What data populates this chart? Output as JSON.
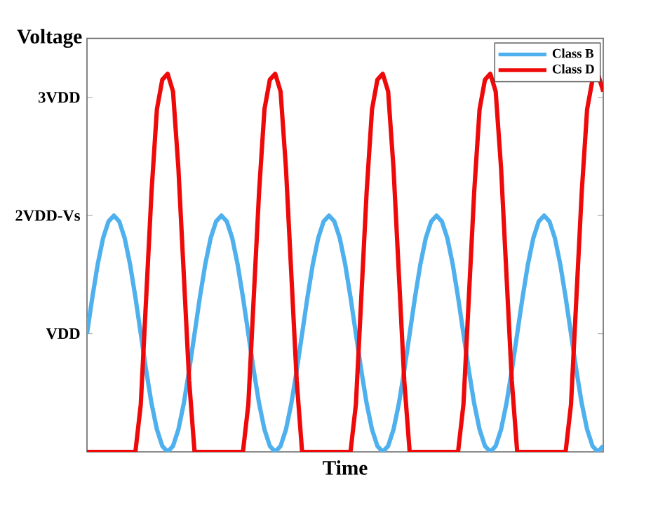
{
  "chart_data": {
    "type": "line",
    "xlabel": "Time",
    "ylabel": "Voltage",
    "categories": [
      null,
      null,
      null,
      null,
      null,
      null,
      null,
      null,
      null,
      null,
      null,
      null,
      null,
      null,
      null,
      null,
      null,
      null,
      null,
      null,
      null,
      null,
      null,
      null,
      null,
      null,
      null,
      null,
      null,
      null,
      null,
      null,
      null,
      null,
      null,
      null,
      null,
      null,
      null,
      null,
      null,
      null,
      null,
      null,
      null,
      null,
      null,
      null,
      null,
      null,
      null,
      null,
      null,
      null,
      null,
      null,
      null,
      null,
      null,
      null,
      null,
      null,
      null,
      null,
      null,
      null,
      null,
      null,
      null,
      null,
      null,
      null,
      null,
      null,
      null,
      null,
      null,
      null,
      null,
      null,
      null,
      null,
      null,
      null,
      null,
      null,
      null,
      null,
      null,
      null,
      null,
      null,
      null,
      null,
      null,
      null,
      null
    ],
    "series": [
      {
        "name": "Class B",
        "color": "#4fb0ee",
        "values": [
          1,
          1.31,
          1.59,
          1.81,
          1.95,
          2,
          1.95,
          1.81,
          1.59,
          1.31,
          1,
          0.69,
          0.41,
          0.19,
          0.05,
          0,
          0.05,
          0.19,
          0.41,
          0.69,
          1,
          1.31,
          1.59,
          1.81,
          1.95,
          2,
          1.95,
          1.81,
          1.59,
          1.31,
          1,
          0.69,
          0.41,
          0.19,
          0.05,
          0,
          0.05,
          0.19,
          0.41,
          0.69,
          1,
          1.31,
          1.59,
          1.81,
          1.95,
          2,
          1.95,
          1.81,
          1.59,
          1.31,
          1,
          0.69,
          0.41,
          0.19,
          0.05,
          0,
          0.05,
          0.19,
          0.41,
          0.69,
          1,
          1.31,
          1.59,
          1.81,
          1.95,
          2,
          1.95,
          1.81,
          1.59,
          1.31,
          1,
          0.69,
          0.41,
          0.19,
          0.05,
          0,
          0.05,
          0.19,
          0.41,
          0.69,
          1,
          1.31,
          1.59,
          1.81,
          1.95,
          2,
          1.95,
          1.81,
          1.59,
          1.31,
          1,
          0.69,
          0.41,
          0.19,
          0.05,
          0,
          0.05
        ]
      },
      {
        "name": "Class D",
        "color": "#ee0a0a",
        "values": [
          0,
          0,
          0,
          0,
          0,
          0,
          0,
          0,
          0,
          0,
          0.4,
          1.3,
          2.2,
          2.9,
          3.15,
          3.2,
          3.05,
          2.4,
          1.5,
          0.6,
          0,
          0,
          0,
          0,
          0,
          0,
          0,
          0,
          0,
          0,
          0.4,
          1.3,
          2.2,
          2.9,
          3.15,
          3.2,
          3.05,
          2.4,
          1.5,
          0.6,
          0,
          0,
          0,
          0,
          0,
          0,
          0,
          0,
          0,
          0,
          0.4,
          1.3,
          2.2,
          2.9,
          3.15,
          3.2,
          3.05,
          2.4,
          1.5,
          0.6,
          0,
          0,
          0,
          0,
          0,
          0,
          0,
          0,
          0,
          0,
          0.4,
          1.3,
          2.2,
          2.9,
          3.15,
          3.2,
          3.05,
          2.4,
          1.5,
          0.6,
          0,
          0,
          0,
          0,
          0,
          0,
          0,
          0,
          0,
          0,
          0.4,
          1.3,
          2.2,
          2.9,
          3.15,
          3.2,
          3.05
        ]
      }
    ],
    "ylim": [
      0,
      3.5
    ],
    "yticks": [
      {
        "value": 1,
        "label": "VDD"
      },
      {
        "value": 2,
        "label": "2VDD-Vs"
      },
      {
        "value": 3,
        "label": "3VDD"
      }
    ],
    "tick_labels": "y",
    "grid": false,
    "legend": "top right"
  }
}
